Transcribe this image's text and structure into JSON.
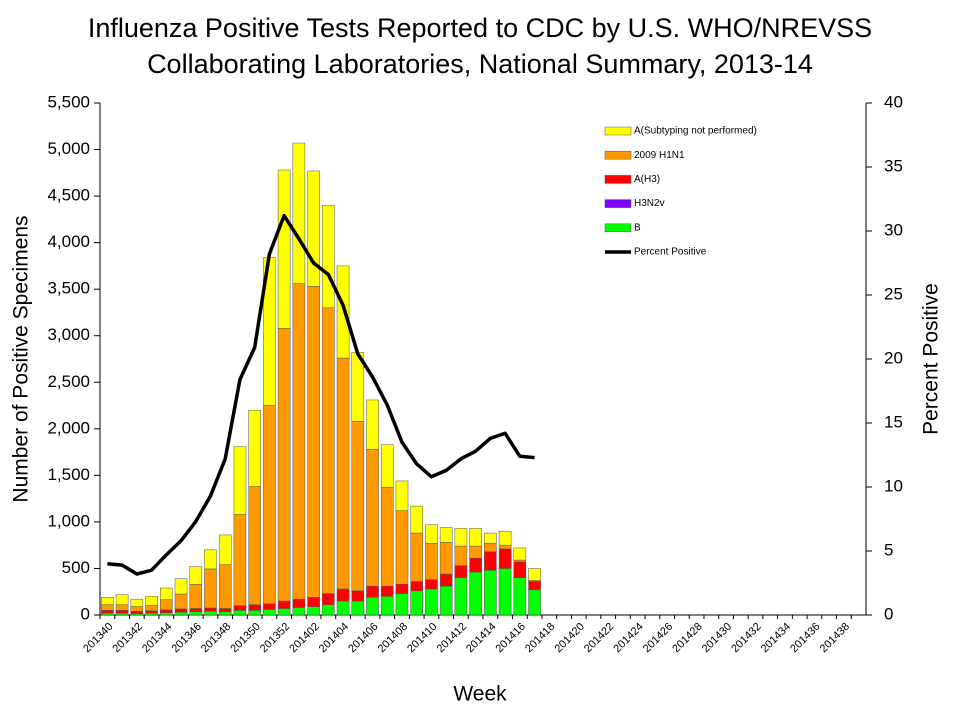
{
  "chart_data": {
    "type": "bar",
    "title_lines": [
      "Influenza Positive Tests Reported to CDC by U.S. WHO/NREVSS",
      "Collaborating Laboratories, National Summary, 2013-14"
    ],
    "xlabel": "Week",
    "ylabel": "Number of Positive Specimens",
    "y2label": "Percent Positive",
    "stacked": true,
    "categories": [
      "201340",
      null,
      "201342",
      null,
      "201344",
      null,
      "201346",
      null,
      "201348",
      null,
      "201350",
      null,
      "201352",
      null,
      "201402",
      null,
      "201404",
      null,
      "201406",
      null,
      "201408",
      null,
      "201410",
      null,
      "201412",
      null,
      "201414",
      null,
      "201416",
      null,
      "201418",
      null,
      "201420",
      null,
      "201422",
      null,
      "201424",
      null,
      "201426",
      null,
      "201428",
      null,
      "201430",
      null,
      "201432",
      null,
      "201434",
      null,
      "201436",
      null,
      "201438",
      null
    ],
    "series": [
      {
        "name": "A(Subtyping not performed)",
        "color": "#ffff00",
        "values": [
          80,
          110,
          80,
          95,
          125,
          165,
          190,
          205,
          320,
          730,
          820,
          1590,
          1700,
          1510,
          1240,
          1100,
          990,
          740,
          530,
          460,
          320,
          290,
          200,
          160,
          190,
          190,
          110,
          150,
          130,
          130,
          null,
          null,
          null,
          null,
          null,
          null,
          null,
          null,
          null,
          null,
          null,
          null,
          null,
          null,
          null,
          null,
          null,
          null,
          null,
          null,
          null,
          null
        ]
      },
      {
        "name": "2009 H1N1",
        "color": "#ff9900",
        "values": [
          60,
          60,
          50,
          60,
          110,
          160,
          260,
          420,
          470,
          980,
          1270,
          2130,
          2930,
          3390,
          3340,
          3070,
          2480,
          1820,
          1470,
          1060,
          790,
          520,
          390,
          340,
          210,
          130,
          90,
          40,
          20,
          10,
          null,
          null,
          null,
          null,
          null,
          null,
          null,
          null,
          null,
          null,
          null,
          null,
          null,
          null,
          null,
          null,
          null,
          null,
          null,
          null,
          null,
          null
        ]
      },
      {
        "name": "A(H3)",
        "color": "#ff0000",
        "values": [
          30,
          30,
          25,
          25,
          30,
          35,
          35,
          35,
          35,
          50,
          60,
          60,
          80,
          90,
          100,
          120,
          130,
          110,
          120,
          110,
          100,
          100,
          100,
          130,
          130,
          150,
          200,
          210,
          170,
          90,
          null,
          null,
          null,
          null,
          null,
          null,
          null,
          null,
          null,
          null,
          null,
          null,
          null,
          null,
          null,
          null,
          null,
          null,
          null,
          null,
          null,
          null
        ]
      },
      {
        "name": "H3N2v",
        "color": "#7f00ff",
        "values": [
          0,
          0,
          0,
          0,
          0,
          0,
          0,
          0,
          0,
          0,
          0,
          0,
          0,
          0,
          0,
          0,
          0,
          0,
          0,
          0,
          0,
          0,
          0,
          0,
          0,
          0,
          0,
          0,
          0,
          0,
          null,
          null,
          null,
          null,
          null,
          null,
          null,
          null,
          null,
          null,
          null,
          null,
          null,
          null,
          null,
          null,
          null,
          null,
          null,
          null,
          null,
          null
        ]
      },
      {
        "name": "B",
        "color": "#00ff00",
        "values": [
          20,
          20,
          15,
          20,
          25,
          30,
          35,
          40,
          35,
          50,
          50,
          60,
          70,
          80,
          90,
          110,
          150,
          150,
          190,
          200,
          230,
          260,
          280,
          310,
          400,
          460,
          480,
          500,
          400,
          270,
          null,
          null,
          null,
          null,
          null,
          null,
          null,
          null,
          null,
          null,
          null,
          null,
          null,
          null,
          null,
          null,
          null,
          null,
          null,
          null,
          null,
          null
        ]
      },
      {
        "name": "Percent Positive",
        "color": "#000000",
        "type": "line",
        "axis": "y2",
        "values": [
          4.0,
          3.9,
          3.2,
          3.5,
          4.7,
          5.8,
          7.3,
          9.3,
          12.2,
          18.4,
          20.9,
          28.2,
          31.2,
          29.4,
          27.5,
          26.6,
          24.2,
          20.4,
          18.6,
          16.4,
          13.5,
          11.8,
          10.8,
          11.3,
          12.2,
          12.8,
          13.8,
          14.2,
          12.4,
          12.3,
          null,
          null,
          null,
          null,
          null,
          null,
          null,
          null,
          null,
          null,
          null,
          null,
          null,
          null,
          null,
          null,
          null,
          null,
          null,
          null,
          null,
          null
        ]
      }
    ],
    "ylim": [
      0,
      5500
    ],
    "yticks": [
      0,
      500,
      {
        "value": 1000,
        "label": "1,000"
      },
      {
        "value": 1500,
        "label": "1,500"
      },
      {
        "value": 2000,
        "label": "2,000"
      },
      {
        "value": 2500,
        "label": "2,500"
      },
      {
        "value": 3000,
        "label": "3,000"
      },
      {
        "value": 3500,
        "label": "3,500"
      },
      {
        "value": 4000,
        "label": "4,000"
      },
      {
        "value": 4500,
        "label": "4,500"
      },
      {
        "value": 5000,
        "label": "5,000"
      },
      {
        "value": 5500,
        "label": "5,500"
      }
    ],
    "y2lim": [
      0,
      40
    ],
    "y2ticks": [
      0,
      5,
      10,
      15,
      20,
      25,
      30,
      35,
      40
    ],
    "legend": "upper right",
    "grid": false
  }
}
